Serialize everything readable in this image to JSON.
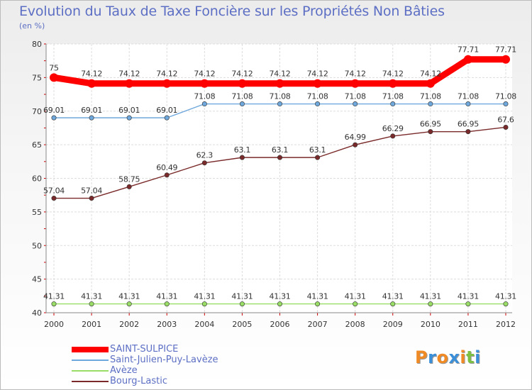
{
  "chart_data": {
    "type": "line",
    "title": "Evolution du Taux de Taxe Foncière sur les Propriétés Non Bâties",
    "ylabel": "(en %)",
    "xlabel": "",
    "x": [
      "2000",
      "2001",
      "2002",
      "2003",
      "2004",
      "2005",
      "2006",
      "2007",
      "2008",
      "2009",
      "2010",
      "2011",
      "2012"
    ],
    "ylim": [
      40,
      80
    ],
    "yticks": [
      40,
      45,
      50,
      55,
      60,
      65,
      70,
      75,
      80
    ],
    "grid": true,
    "series": [
      {
        "name": "SAINT-SULPICE",
        "color": "#ff0000",
        "emphasis": true,
        "values": [
          75,
          74.12,
          74.12,
          74.12,
          74.12,
          74.12,
          74.12,
          74.12,
          74.12,
          74.12,
          74.12,
          77.71,
          77.71
        ],
        "labels": [
          "75",
          "74.12",
          "74.12",
          "74.12",
          "74.12",
          "74.12",
          "74.12",
          "74.12",
          "74.12",
          "74.12",
          "74.12",
          "77.71",
          "77.71"
        ]
      },
      {
        "name": "Saint-Julien-Puy-Lavèze",
        "color": "#6fa8dc",
        "values": [
          69.01,
          69.01,
          69.01,
          69.01,
          71.08,
          71.08,
          71.08,
          71.08,
          71.08,
          71.08,
          71.08,
          71.08,
          71.08
        ],
        "labels": [
          "69.01",
          "69.01",
          "69.01",
          "69.01",
          "71.08",
          "71.08",
          "71.08",
          "71.08",
          "71.08",
          "71.08",
          "71.08",
          "71.08",
          "71.08"
        ]
      },
      {
        "name": "Avèze",
        "color": "#99dd66",
        "values": [
          41.31,
          41.31,
          41.31,
          41.31,
          41.31,
          41.31,
          41.31,
          41.31,
          41.31,
          41.31,
          41.31,
          41.31,
          41.31
        ],
        "labels": [
          "41.31",
          "41.31",
          "41.31",
          "41.31",
          "41.31",
          "41.31",
          "41.31",
          "41.31",
          "41.31",
          "41.31",
          "41.31",
          "41.31",
          "41.31"
        ]
      },
      {
        "name": "Bourg-Lastic",
        "color": "#7a2a2a",
        "values": [
          57.04,
          57.04,
          58.75,
          60.49,
          62.3,
          63.1,
          63.1,
          63.1,
          64.99,
          66.29,
          66.95,
          66.95,
          67.6
        ],
        "labels": [
          "57.04",
          "57.04",
          "58.75",
          "60.49",
          "62.3",
          "63.1",
          "63.1",
          "63.1",
          "64.99",
          "66.29",
          "66.95",
          "66.95",
          "67.6"
        ]
      }
    ]
  },
  "logo": {
    "letters": [
      "P",
      "r",
      "o",
      "x",
      "i",
      "t",
      "i"
    ],
    "colors": [
      "#f08a24",
      "#3a8fd8",
      "#f08a24",
      "#3a8fd8",
      "#f08a24",
      "#7cc043",
      "#3a8fd8"
    ]
  }
}
